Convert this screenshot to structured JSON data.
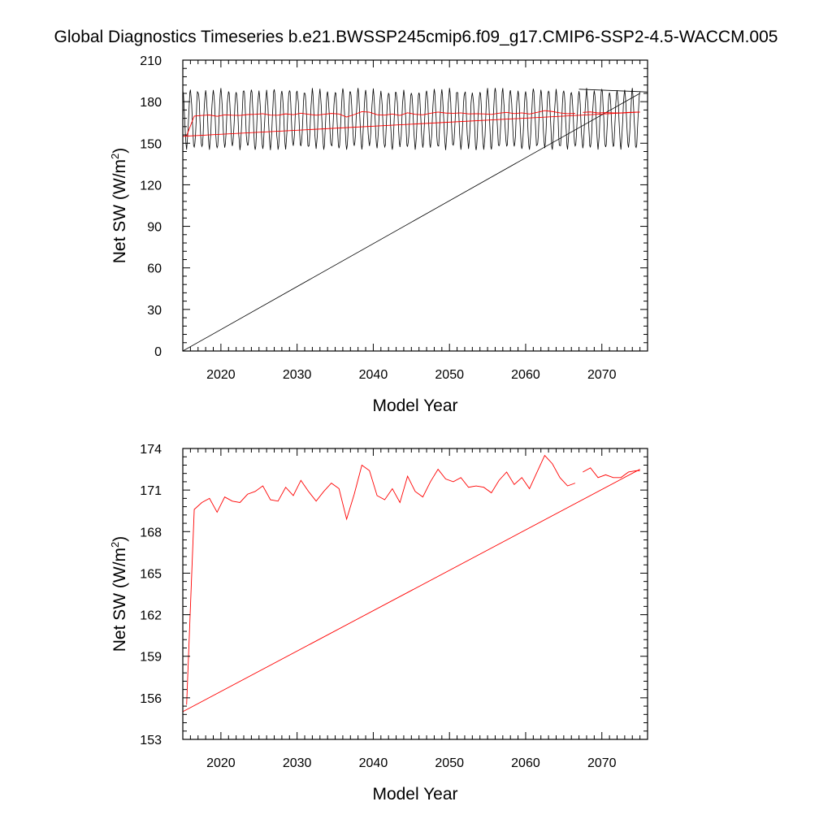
{
  "title": "Global Diagnostics Timeseries b.e21.BWSSP245cmip6.f09_g17.CMIP6-SSP2-4.5-WACCM.005",
  "colors": {
    "monthly": "#000000",
    "annual": "#ff0000",
    "frame": "#000000"
  },
  "chart_data": [
    {
      "type": "line",
      "panel": "top",
      "xlabel": "Model Year",
      "ylabel_prefix": "Net SW (W/m",
      "ylabel_sup": "2",
      "ylabel_suffix": ")",
      "xlim": [
        2015,
        2076
      ],
      "ylim": [
        0,
        210
      ],
      "xticks": [
        2020,
        2030,
        2040,
        2050,
        2060,
        2070
      ],
      "yticks": [
        0,
        30,
        60,
        90,
        120,
        150,
        180,
        210
      ],
      "monthly_cycle": {
        "start": 2015.0,
        "end": 2075.0,
        "period_years": 1.0,
        "min": 147,
        "max": 188,
        "mean": 167.5
      },
      "monthly_return_segment": {
        "x": [
          2075.0,
          2015.0
        ],
        "y": [
          186,
          0
        ]
      },
      "monthly_tail_segment": {
        "x": [
          2067.0,
          2076.0
        ],
        "y": [
          189,
          187
        ]
      },
      "annual_series": {
        "x": [
          2015.5,
          2016.5,
          2017.5,
          2018.5,
          2019.5,
          2020.5,
          2021.5,
          2022.5,
          2023.5,
          2024.5,
          2025.5,
          2026.5,
          2027.5,
          2028.5,
          2029.5,
          2030.5,
          2031.5,
          2032.5,
          2033.5,
          2034.5,
          2035.5,
          2036.5,
          2037.5,
          2038.5,
          2039.5,
          2040.5,
          2041.5,
          2042.5,
          2043.5,
          2044.5,
          2045.5,
          2046.5,
          2047.5,
          2048.5,
          2049.5,
          2050.5,
          2051.5,
          2052.5,
          2053.5,
          2054.5,
          2055.5,
          2056.5,
          2057.5,
          2058.5,
          2059.5,
          2060.5,
          2061.5,
          2062.5,
          2063.5,
          2064.5,
          2065.5,
          2066.5
        ],
        "y": [
          155.5,
          169.6,
          170.1,
          170.4,
          169.4,
          170.5,
          170.2,
          170.1,
          170.7,
          170.9,
          171.3,
          170.3,
          170.2,
          171.2,
          170.6,
          171.7,
          170.9,
          170.2,
          170.9,
          171.5,
          171.1,
          168.9,
          170.7,
          172.8,
          172.4,
          170.6,
          170.3,
          171.1,
          170.1,
          172.0,
          170.9,
          170.5,
          171.6,
          172.5,
          171.8,
          171.6,
          171.9,
          171.2,
          171.3,
          171.2,
          170.8,
          171.7,
          172.3,
          171.4,
          171.9,
          171.1,
          172.3,
          173.5,
          172.9,
          171.9,
          171.3,
          171.5
        ]
      },
      "annual_return_segment": {
        "x": [
          2075.0,
          2015.0
        ],
        "y": [
          172.5,
          155.0
        ]
      },
      "annual_tail_segment": {
        "x": [
          2067.5,
          2068.5,
          2069.5,
          2070.5,
          2071.5,
          2072.5,
          2073.5,
          2074.5,
          2075.0
        ],
        "y": [
          172.3,
          172.6,
          171.9,
          172.1,
          171.9,
          171.9,
          172.3,
          172.4,
          172.4
        ]
      }
    },
    {
      "type": "line",
      "panel": "bottom",
      "xlabel": "Model Year",
      "ylabel_prefix": "Net SW (W/m",
      "ylabel_sup": "2",
      "ylabel_suffix": ")",
      "xlim": [
        2015,
        2076
      ],
      "ylim": [
        153,
        174
      ],
      "xticks": [
        2020,
        2030,
        2040,
        2050,
        2060,
        2070
      ],
      "yticks": [
        153,
        156,
        159,
        162,
        165,
        168,
        171,
        174
      ],
      "annual_series": {
        "x": [
          2015.5,
          2016.5,
          2017.5,
          2018.5,
          2019.5,
          2020.5,
          2021.5,
          2022.5,
          2023.5,
          2024.5,
          2025.5,
          2026.5,
          2027.5,
          2028.5,
          2029.5,
          2030.5,
          2031.5,
          2032.5,
          2033.5,
          2034.5,
          2035.5,
          2036.5,
          2037.5,
          2038.5,
          2039.5,
          2040.5,
          2041.5,
          2042.5,
          2043.5,
          2044.5,
          2045.5,
          2046.5,
          2047.5,
          2048.5,
          2049.5,
          2050.5,
          2051.5,
          2052.5,
          2053.5,
          2054.5,
          2055.5,
          2056.5,
          2057.5,
          2058.5,
          2059.5,
          2060.5,
          2061.5,
          2062.5,
          2063.5,
          2064.5,
          2065.5,
          2066.5
        ],
        "y": [
          155.5,
          169.6,
          170.1,
          170.4,
          169.4,
          170.5,
          170.2,
          170.1,
          170.7,
          170.9,
          171.3,
          170.3,
          170.2,
          171.2,
          170.6,
          171.7,
          170.9,
          170.2,
          170.9,
          171.5,
          171.1,
          168.9,
          170.7,
          172.8,
          172.4,
          170.6,
          170.3,
          171.1,
          170.1,
          172.0,
          170.9,
          170.5,
          171.6,
          172.5,
          171.8,
          171.6,
          171.9,
          171.2,
          171.3,
          171.2,
          170.8,
          171.7,
          172.3,
          171.4,
          171.9,
          171.1,
          172.3,
          173.5,
          172.9,
          171.9,
          171.3,
          171.5
        ]
      },
      "annual_return_segment": {
        "x": [
          2075.0,
          2015.0
        ],
        "y": [
          172.5,
          155.0
        ]
      },
      "annual_tail_segment": {
        "x": [
          2067.5,
          2068.5,
          2069.5,
          2070.5,
          2071.5,
          2072.5,
          2073.5,
          2074.5,
          2075.0
        ],
        "y": [
          172.3,
          172.6,
          171.9,
          172.1,
          171.9,
          171.9,
          172.3,
          172.4,
          172.4
        ]
      }
    }
  ]
}
